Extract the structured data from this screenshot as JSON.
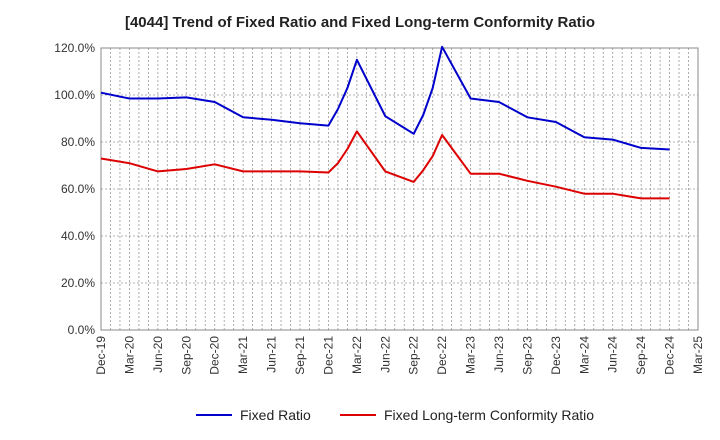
{
  "chart_data": {
    "type": "line",
    "title": "[4044]  Trend of Fixed Ratio and Fixed Long-term Conformity Ratio",
    "xlabel": "",
    "ylabel": "",
    "x_ticks": [
      "Dec-19",
      "Mar-20",
      "Jun-20",
      "Sep-20",
      "Dec-20",
      "Mar-21",
      "Jun-21",
      "Sep-21",
      "Dec-21",
      "Mar-22",
      "Jun-22",
      "Sep-22",
      "Dec-22",
      "Mar-23",
      "Jun-23",
      "Sep-23",
      "Dec-23",
      "Mar-24",
      "Jun-24",
      "Sep-24",
      "Dec-24",
      "Mar-25"
    ],
    "y_ticks": [
      "0.0%",
      "20.0%",
      "40.0%",
      "60.0%",
      "80.0%",
      "100.0%",
      "120.0%"
    ],
    "ylim": [
      0,
      120
    ],
    "grid": true,
    "legend_position": "bottom-center",
    "x": [
      "Dec-19",
      "Mar-20",
      "Jun-20",
      "Sep-20",
      "Dec-20",
      "Mar-21",
      "Jun-21",
      "Sep-21",
      "Dec-21",
      "Jan-22",
      "Feb-22",
      "Mar-22",
      "Jun-22",
      "Sep-22",
      "Oct-22",
      "Nov-22",
      "Dec-22",
      "Mar-23",
      "Jun-23",
      "Sep-23",
      "Dec-23",
      "Mar-24",
      "Jun-24",
      "Sep-24",
      "Dec-24"
    ],
    "series": [
      {
        "name": "Fixed Ratio",
        "color": "#0000cc",
        "values": [
          101.0,
          98.5,
          98.5,
          99.0,
          97.0,
          90.5,
          89.5,
          88.0,
          87.0,
          94.0,
          103.0,
          115.0,
          91.0,
          83.5,
          91.5,
          103.0,
          120.5,
          98.5,
          97.0,
          90.5,
          88.5,
          82.0,
          81.0,
          77.5,
          76.8
        ]
      },
      {
        "name": "Fixed Long-term Conformity Ratio",
        "color": "#dd0000",
        "values": [
          73.0,
          71.0,
          67.5,
          68.5,
          70.5,
          67.5,
          67.5,
          67.5,
          67.0,
          71.0,
          77.0,
          84.5,
          67.5,
          63.0,
          68.0,
          74.0,
          83.0,
          66.5,
          66.5,
          63.5,
          61.0,
          58.0,
          58.0,
          56.0,
          56.0
        ]
      }
    ]
  }
}
